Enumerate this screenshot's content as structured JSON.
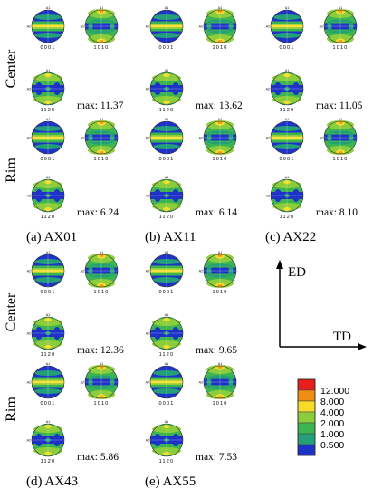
{
  "row_labels": {
    "center": "Center",
    "rim": "Rim"
  },
  "pole_labels": {
    "basal": "0001",
    "prism": "1010",
    "pyramidal": "1120"
  },
  "axis_tiny": {
    "top": "A1",
    "left": "A2"
  },
  "panels": [
    {
      "caption": "(a) AX01",
      "center_max": "max: 11.37",
      "rim_max": "max: 6.24"
    },
    {
      "caption": "(b) AX11",
      "center_max": "max: 13.62",
      "rim_max": "max: 6.14"
    },
    {
      "caption": "(c) AX22",
      "center_max": "max: 11.05",
      "rim_max": "max: 8.10"
    },
    {
      "caption": "(d) AX43",
      "center_max": "max: 12.36",
      "rim_max": "max: 5.86"
    },
    {
      "caption": "(e) AX55",
      "center_max": "max: 9.65",
      "rim_max": "max: 7.53"
    }
  ],
  "axes": {
    "vertical": "ED",
    "horizontal": "TD"
  },
  "legend": {
    "levels": [
      "12.000",
      "8.000",
      "4.000",
      "2.000",
      "1.000",
      "0.500"
    ],
    "colors": [
      "#e61e1e",
      "#f08c14",
      "#f5dc28",
      "#8ccd3c",
      "#3cb450",
      "#23a078",
      "#1e32c8"
    ]
  }
}
